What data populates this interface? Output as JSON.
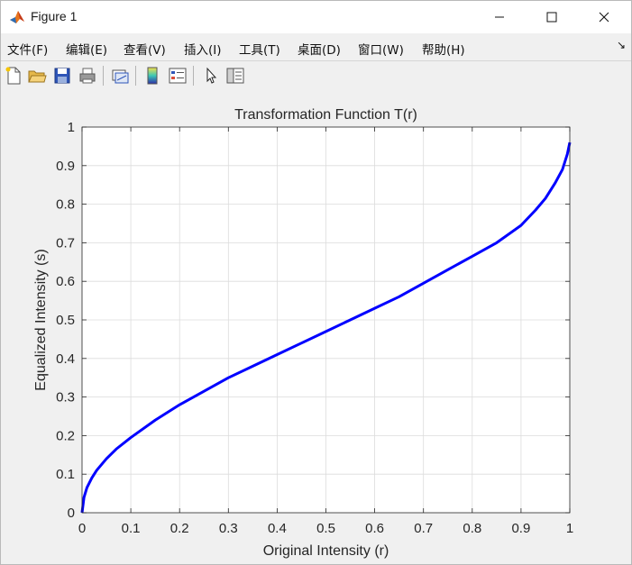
{
  "window": {
    "title": "Figure 1",
    "icon": "matlab-logo-icon",
    "controls": [
      "minimize-icon",
      "maximize-icon",
      "close-icon"
    ]
  },
  "menu": {
    "items": [
      {
        "label": "文件(F)"
      },
      {
        "label": "编辑(E)"
      },
      {
        "label": "查看(V)"
      },
      {
        "label": "插入(I)"
      },
      {
        "label": "工具(T)"
      },
      {
        "label": "桌面(D)"
      },
      {
        "label": "窗口(W)"
      },
      {
        "label": "帮助(H)"
      }
    ],
    "dock_glyph": "↘"
  },
  "toolbar": {
    "buttons": [
      "new-figure-icon",
      "open-file-icon",
      "save-icon",
      "print-icon",
      "link-plot-icon",
      "insert-colorbar-icon",
      "insert-legend-icon",
      "edit-plot-icon",
      "property-inspector-icon"
    ]
  },
  "chart_data": {
    "type": "line",
    "title": "Transformation Function T(r)",
    "xlabel": "Original Intensity (r)",
    "ylabel": "Equalized Intensity (s)",
    "xlim": [
      0,
      1
    ],
    "ylim": [
      0,
      1
    ],
    "xticks": [
      0,
      0.1,
      0.2,
      0.3,
      0.4,
      0.5,
      0.6,
      0.7,
      0.8,
      0.9,
      1
    ],
    "xtick_labels": [
      "0",
      "0.1",
      "0.2",
      "0.3",
      "0.4",
      "0.5",
      "0.6",
      "0.7",
      "0.8",
      "0.9",
      "1"
    ],
    "yticks": [
      0,
      0.1,
      0.2,
      0.3,
      0.4,
      0.5,
      0.6,
      0.7,
      0.8,
      0.9,
      1
    ],
    "ytick_labels": [
      "0",
      "0.1",
      "0.2",
      "0.3",
      "0.4",
      "0.5",
      "0.6",
      "0.7",
      "0.8",
      "0.9",
      "1"
    ],
    "grid": true,
    "series": [
      {
        "color": "#0000ff",
        "x": [
          0,
          0.004,
          0.01,
          0.02,
          0.03,
          0.05,
          0.07,
          0.1,
          0.15,
          0.2,
          0.25,
          0.3,
          0.35,
          0.4,
          0.45,
          0.5,
          0.55,
          0.6,
          0.65,
          0.7,
          0.75,
          0.8,
          0.85,
          0.9,
          0.93,
          0.95,
          0.97,
          0.985,
          0.995,
          1
        ],
        "y": [
          0,
          0.04,
          0.065,
          0.09,
          0.11,
          0.14,
          0.165,
          0.195,
          0.24,
          0.28,
          0.315,
          0.35,
          0.38,
          0.41,
          0.44,
          0.47,
          0.5,
          0.53,
          0.56,
          0.595,
          0.63,
          0.665,
          0.7,
          0.745,
          0.785,
          0.815,
          0.855,
          0.89,
          0.93,
          0.96
        ]
      }
    ]
  }
}
